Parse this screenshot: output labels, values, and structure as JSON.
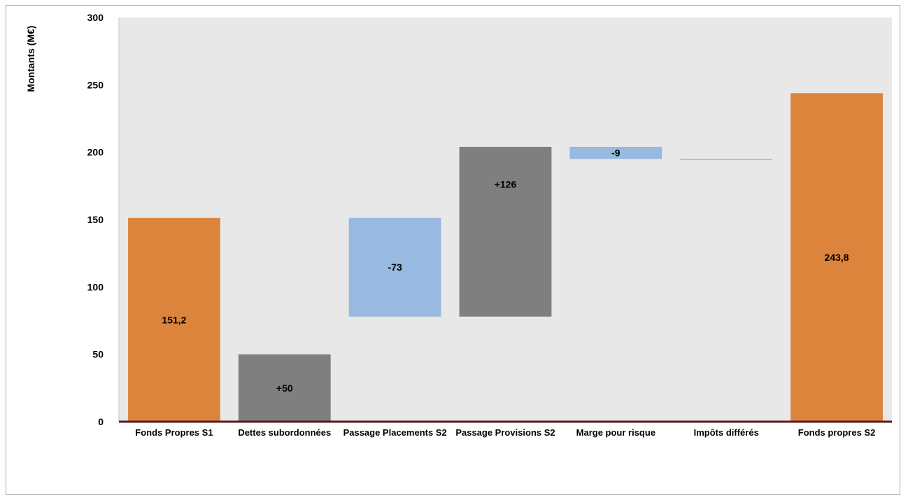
{
  "chart_data": {
    "type": "waterfall",
    "title": "",
    "xlabel": "",
    "ylabel": "Montants (M€)",
    "ylim": [
      0,
      300
    ],
    "yticks": [
      0,
      50,
      100,
      150,
      200,
      250,
      300
    ],
    "ytick_labels": [
      "0",
      "50",
      "100",
      "150",
      "200",
      "250",
      "300"
    ],
    "grid": false,
    "legend": "none",
    "categories": [
      "Fonds Propres S1",
      "Dettes subordonnées",
      "Passage Placements S2",
      "Passage Provisions S2",
      "Marge pour risque",
      "Impôts différés",
      "Fonds propres S2"
    ],
    "bars": [
      {
        "kind": "total",
        "base": 0,
        "top": 151.2,
        "value": 151.2,
        "label": "151,2",
        "color": "#dd843c"
      },
      {
        "kind": "increase",
        "base": 0,
        "top": 50,
        "value": 50,
        "label": "+50",
        "color": "#7f7f7f"
      },
      {
        "kind": "decrease",
        "base": 78,
        "top": 151.2,
        "value": -73,
        "label": "-73",
        "color": "#98b9e0"
      },
      {
        "kind": "increase",
        "base": 78,
        "top": 204,
        "value": 126,
        "label": "+126",
        "color": "#7f7f7f"
      },
      {
        "kind": "decrease",
        "base": 195,
        "top": 204,
        "value": -9,
        "label": "-9",
        "color": "#98b9e0"
      },
      {
        "kind": "decrease",
        "base": 194.2,
        "top": 195,
        "value": -0.8,
        "label": "",
        "color": "#98b9e0"
      },
      {
        "kind": "total",
        "base": 0,
        "top": 243.8,
        "value": 243.8,
        "label": "243,8",
        "color": "#dd843c"
      }
    ],
    "colors": {
      "plot_background": "#e8e8e8",
      "axis_line": "#5a1a1a",
      "total": "#dd843c",
      "increase": "#7f7f7f",
      "decrease": "#98b9e0"
    }
  }
}
